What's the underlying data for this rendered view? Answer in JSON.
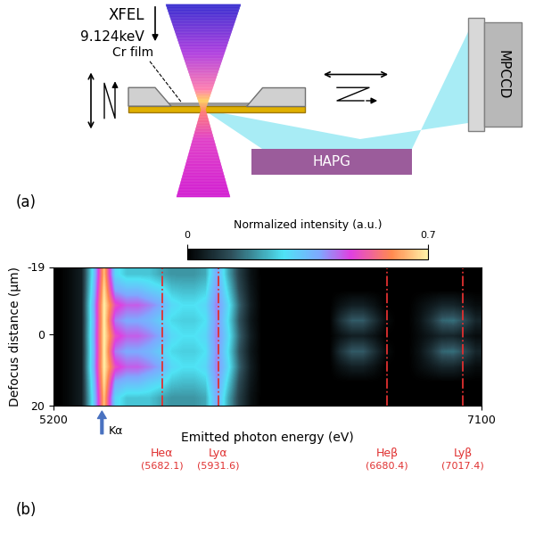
{
  "panel_a": {
    "panel_label": "(a)",
    "beam_label": "XFEL",
    "beam_energy": "9.124keV",
    "sample": "Cr film",
    "crystal": "HAPG",
    "detector": "MPCCD"
  },
  "chart_data": {
    "type": "heatmap",
    "panel_label": "(b)",
    "x_label": "Emitted photon energy (eV)",
    "y_label": "Defocus distance (μm)",
    "xlim": [
      5200,
      7100
    ],
    "xticks": [
      5200,
      7100
    ],
    "ylim": [
      20,
      -19
    ],
    "yticks": [
      -19,
      0,
      20
    ],
    "colorbar": {
      "label": "Normalized intensity (a.u.)",
      "range": [
        0,
        0.7
      ],
      "ticks": [
        0,
        0.7
      ]
    },
    "cells": [
      [
        0,
        0.02,
        0.05,
        0.3,
        0.65,
        0.3,
        0.25,
        0.25,
        0.25,
        0.22,
        0.2,
        0.2,
        0.2,
        0.22,
        0.38,
        0.22,
        0.1,
        0.03,
        0,
        0,
        0,
        0,
        0,
        0,
        0,
        0,
        0,
        0,
        0,
        0,
        0,
        0,
        0,
        0,
        0,
        0,
        0,
        0
      ],
      [
        0,
        0.02,
        0.05,
        0.32,
        0.68,
        0.38,
        0.35,
        0.35,
        0.32,
        0.3,
        0.25,
        0.24,
        0.24,
        0.26,
        0.4,
        0.26,
        0.12,
        0.04,
        0,
        0,
        0,
        0,
        0,
        0,
        0,
        0,
        0,
        0,
        0,
        0,
        0,
        0,
        0,
        0,
        0,
        0,
        0,
        0
      ],
      [
        0,
        0.02,
        0.05,
        0.35,
        0.7,
        0.5,
        0.45,
        0.45,
        0.42,
        0.38,
        0.3,
        0.28,
        0.28,
        0.3,
        0.42,
        0.3,
        0.15,
        0.05,
        0,
        0,
        0,
        0,
        0,
        0,
        0,
        0.03,
        0.05,
        0.05,
        0.03,
        0,
        0,
        0,
        0.02,
        0.04,
        0.06,
        0.06,
        0.04,
        0.02
      ],
      [
        0,
        0.02,
        0.05,
        0.34,
        0.7,
        0.42,
        0.38,
        0.38,
        0.36,
        0.32,
        0.27,
        0.26,
        0.26,
        0.28,
        0.41,
        0.28,
        0.13,
        0.04,
        0,
        0,
        0,
        0,
        0,
        0,
        0,
        0.08,
        0.14,
        0.14,
        0.08,
        0.02,
        0,
        0,
        0.03,
        0.08,
        0.15,
        0.16,
        0.12,
        0.06
      ],
      [
        0,
        0.02,
        0.05,
        0.35,
        0.7,
        0.5,
        0.45,
        0.45,
        0.42,
        0.38,
        0.3,
        0.28,
        0.28,
        0.3,
        0.42,
        0.3,
        0.15,
        0.05,
        0,
        0,
        0,
        0,
        0,
        0,
        0,
        0.03,
        0.05,
        0.05,
        0.03,
        0,
        0,
        0,
        0.02,
        0.04,
        0.06,
        0.06,
        0.04,
        0.02
      ],
      [
        0,
        0.02,
        0.05,
        0.34,
        0.7,
        0.42,
        0.38,
        0.38,
        0.36,
        0.32,
        0.27,
        0.26,
        0.26,
        0.28,
        0.41,
        0.28,
        0.13,
        0.04,
        0,
        0,
        0,
        0,
        0,
        0,
        0,
        0.08,
        0.14,
        0.14,
        0.08,
        0.02,
        0,
        0,
        0.03,
        0.08,
        0.15,
        0.16,
        0.12,
        0.06
      ],
      [
        0,
        0.02,
        0.05,
        0.35,
        0.7,
        0.5,
        0.45,
        0.45,
        0.42,
        0.38,
        0.3,
        0.28,
        0.28,
        0.3,
        0.42,
        0.3,
        0.15,
        0.05,
        0,
        0,
        0,
        0,
        0,
        0,
        0,
        0.03,
        0.05,
        0.05,
        0.03,
        0,
        0,
        0,
        0.02,
        0.04,
        0.06,
        0.06,
        0.04,
        0.02
      ],
      [
        0,
        0.02,
        0.05,
        0.32,
        0.68,
        0.38,
        0.35,
        0.35,
        0.32,
        0.3,
        0.25,
        0.24,
        0.24,
        0.26,
        0.4,
        0.26,
        0.12,
        0.04,
        0,
        0,
        0,
        0,
        0,
        0,
        0,
        0,
        0,
        0,
        0,
        0,
        0,
        0,
        0,
        0,
        0,
        0,
        0,
        0
      ],
      [
        0,
        0.02,
        0.05,
        0.3,
        0.65,
        0.3,
        0.25,
        0.25,
        0.25,
        0.22,
        0.2,
        0.2,
        0.2,
        0.22,
        0.38,
        0.22,
        0.1,
        0.03,
        0,
        0,
        0,
        0,
        0,
        0,
        0,
        0,
        0,
        0,
        0,
        0,
        0,
        0,
        0,
        0,
        0,
        0,
        0,
        0
      ]
    ],
    "marker": {
      "name": "Kα",
      "value": 5415
    },
    "lines": [
      {
        "name": "Heα",
        "label": "(5682.1)",
        "value": 5682.1
      },
      {
        "name": "Lyα",
        "label": "(5931.6)",
        "value": 5931.6
      },
      {
        "name": "Heβ",
        "label": "(6680.4)",
        "value": 6680.4
      },
      {
        "name": "Lyβ",
        "label": "(7017.4)",
        "value": 7017.4
      }
    ]
  }
}
